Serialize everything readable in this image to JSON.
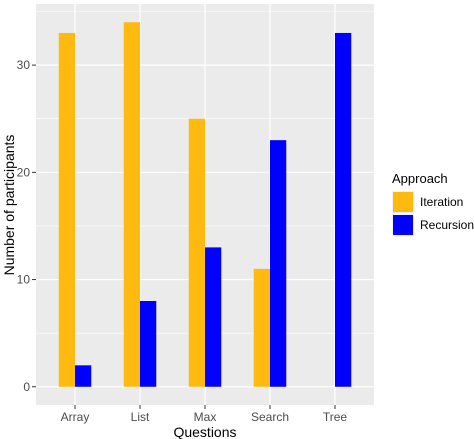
{
  "chart_data": {
    "type": "bar",
    "categories": [
      "Array",
      "List",
      "Max",
      "Search",
      "Tree"
    ],
    "series": [
      {
        "name": "Iteration",
        "values": [
          33,
          34,
          25,
          11,
          0
        ],
        "color": "#FFB90F"
      },
      {
        "name": "Recursion",
        "values": [
          2,
          8,
          13,
          23,
          33
        ],
        "color": "#0000FF"
      }
    ],
    "xlabel": "Questions",
    "ylabel": "Number of participants",
    "yticks": [
      0,
      10,
      20,
      30
    ],
    "ylim": [
      -1.7,
      35.7
    ],
    "legend_title": "Approach",
    "legend_position": "right",
    "panel_background": "#EBEBEB",
    "grid": true
  }
}
